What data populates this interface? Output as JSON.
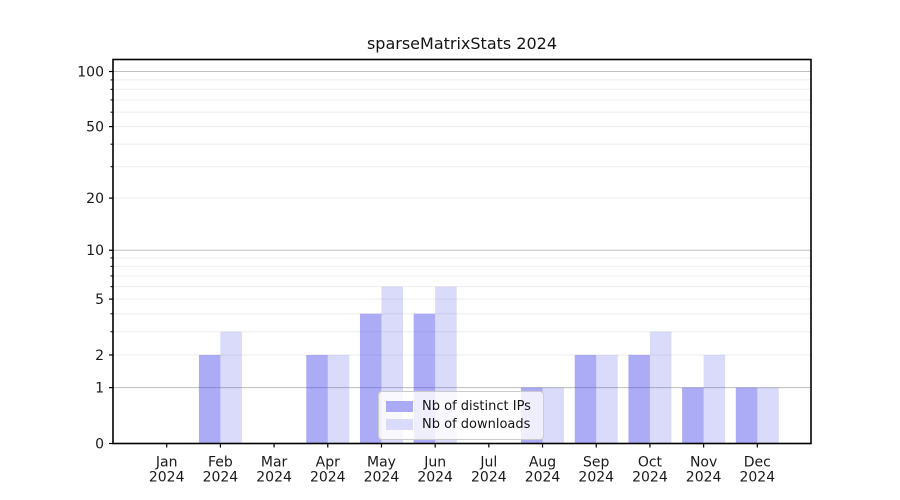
{
  "chart_data": {
    "type": "bar",
    "title": "sparseMatrixStats 2024",
    "categories": [
      "Jan",
      "Feb",
      "Mar",
      "Apr",
      "May",
      "Jun",
      "Jul",
      "Aug",
      "Sep",
      "Oct",
      "Nov",
      "Dec"
    ],
    "x_tick_year": "2024",
    "series": [
      {
        "name": "Nb of distinct IPs",
        "values": [
          0,
          2,
          0,
          2,
          4,
          4,
          0,
          1,
          2,
          2,
          1,
          1
        ],
        "color": "#aaaaf6",
        "base_color": "#4444ec",
        "alpha": 0.45
      },
      {
        "name": "Nb of downloads",
        "values": [
          0,
          3,
          0,
          2,
          6,
          6,
          0,
          1,
          2,
          3,
          2,
          1
        ],
        "color": "#dadafa",
        "base_color": "#4444ec",
        "alpha": 0.2
      }
    ],
    "yscale": "log1p",
    "ylim": [
      0,
      117
    ],
    "yticks": [
      0,
      1,
      2,
      5,
      10,
      20,
      50,
      100
    ],
    "minor_yticks": [
      3,
      4,
      6,
      7,
      8,
      9,
      30,
      40,
      60,
      70,
      80,
      90
    ],
    "major_gridlines": [
      1,
      10,
      100
    ],
    "minor_gridlines": [
      2,
      3,
      4,
      5,
      6,
      7,
      8,
      9,
      20,
      30,
      40,
      50,
      60,
      70,
      80,
      90
    ],
    "grid": "on",
    "legend_position": "lower-center",
    "colors": {
      "major_grid": "#bdbdbd",
      "minor_grid": "#ededed",
      "spine": "#000000",
      "text": "#1a1a1a"
    }
  }
}
